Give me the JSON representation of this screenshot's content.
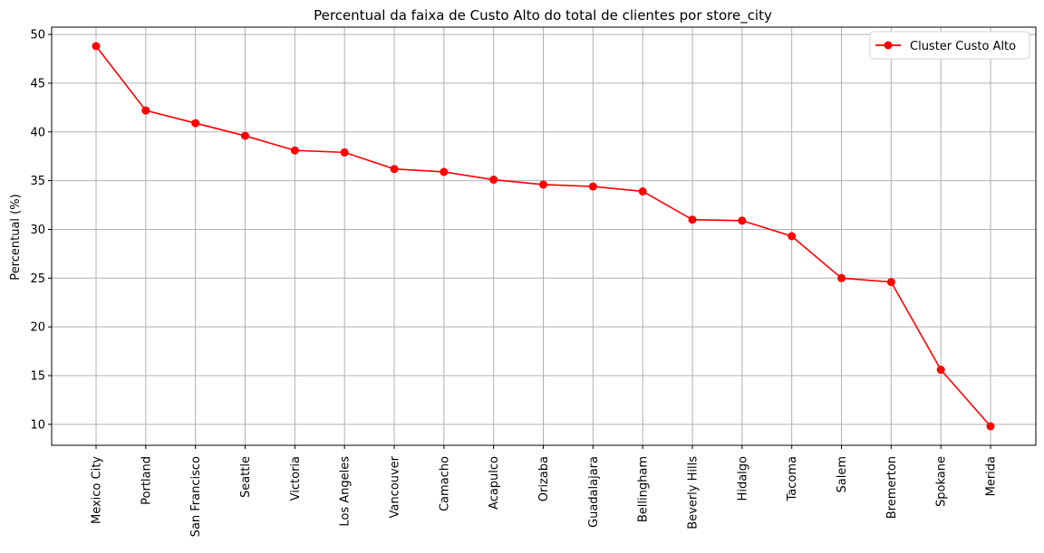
{
  "chart_data": {
    "type": "line",
    "title": "Percentual da faixa de Custo Alto do total de clientes por store_city",
    "xlabel": "",
    "ylabel": "Percentual (%)",
    "categories": [
      "Mexico City",
      "Portland",
      "San Francisco",
      "Seattle",
      "Victoria",
      "Los Angeles",
      "Vancouver",
      "Camacho",
      "Acapulco",
      "Orizaba",
      "Guadalajara",
      "Bellingham",
      "Beverly Hills",
      "Hidalgo",
      "Tacoma",
      "Salem",
      "Bremerton",
      "Spokane",
      "Merida"
    ],
    "series": [
      {
        "name": "Cluster Custo Alto",
        "color": "#ff0000",
        "marker": "circle",
        "values": [
          48.8,
          42.2,
          40.9,
          39.6,
          38.1,
          37.9,
          36.2,
          35.9,
          35.1,
          34.6,
          34.4,
          33.9,
          31.0,
          30.9,
          29.3,
          25.0,
          24.6,
          15.6,
          9.8
        ]
      }
    ],
    "yticks": [
      10,
      15,
      20,
      25,
      30,
      35,
      40,
      45,
      50
    ],
    "ylim": [
      7.85,
      50.75
    ],
    "grid": true,
    "grid_color": "#b0b0b0",
    "legend_position": "top-right"
  }
}
